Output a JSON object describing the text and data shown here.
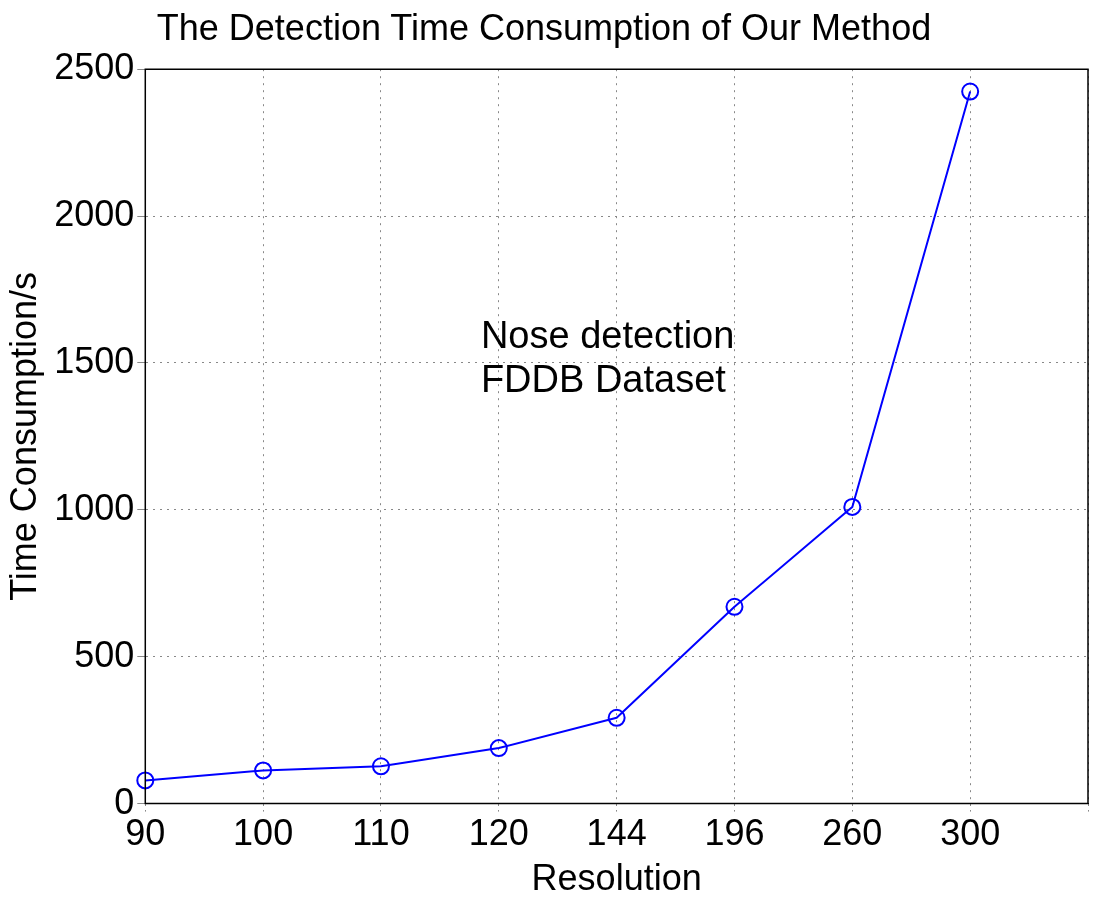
{
  "chart_data": {
    "type": "line",
    "title": "The Detection Time Consumption of Our Method",
    "xlabel": "Resolution",
    "ylabel": "Time Consumption/s",
    "categories": [
      "90",
      "100",
      "110",
      "120",
      "144",
      "196",
      "260",
      "300",
      null
    ],
    "series": [
      {
        "color": "#0000ff",
        "values": [
          79,
          113,
          127,
          189,
          292,
          670,
          1010,
          2424,
          null
        ]
      }
    ],
    "ylim": [
      0,
      2500
    ],
    "yticks": [
      0,
      500,
      1000,
      1500,
      2000,
      2500
    ],
    "grid": true,
    "marker": "circle",
    "line_style": "solid",
    "legend": false,
    "annotations": [
      "Nose detection",
      "FDDB Dataset"
    ]
  }
}
